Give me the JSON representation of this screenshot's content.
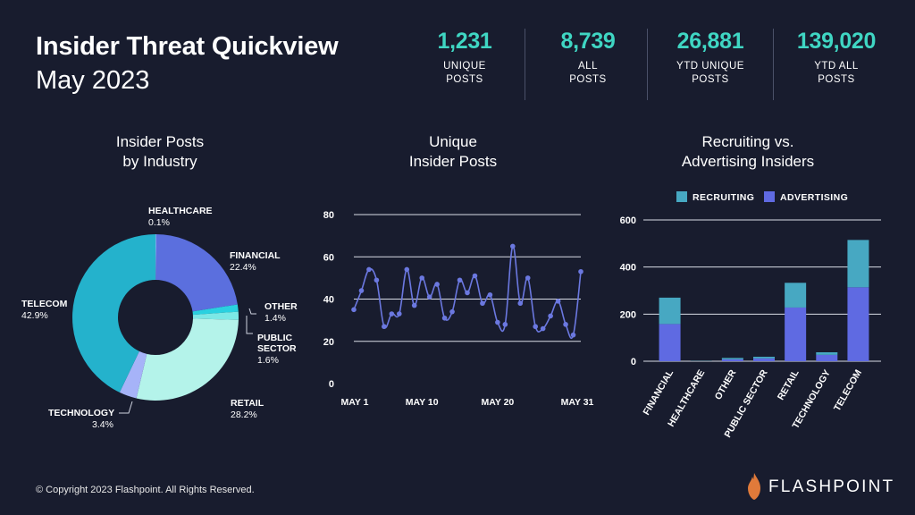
{
  "header": {
    "title": "Insider Threat Quickview",
    "subtitle": "May 2023"
  },
  "stats": [
    {
      "value": "1,231",
      "label": "UNIQUE\nPOSTS"
    },
    {
      "value": "8,739",
      "label": "ALL\nPOSTS"
    },
    {
      "value": "26,881",
      "label": "YTD UNIQUE\nPOSTS"
    },
    {
      "value": "139,020",
      "label": "YTD ALL\nPOSTS"
    }
  ],
  "chart_titles": {
    "pie": "Insider Posts\nby Industry",
    "line": "Unique\nInsider Posts",
    "bar": "Recruiting vs.\nAdvertising Insiders"
  },
  "colors": {
    "accent": "#3fd6c3",
    "background": "#181c2e",
    "financial": "#5b6fde",
    "healthcare": "#9fe6ff",
    "other": "#2ad1e0",
    "public_sector": "#7ce8e6",
    "retail": "#b4f3ea",
    "technology": "#a6b3f8",
    "telecom": "#24b2cc",
    "line": "#6b78e0",
    "recruiting": "#47a8c2",
    "advertising": "#5f6ae2"
  },
  "chart_data": [
    {
      "type": "pie",
      "title": "Insider Posts by Industry",
      "slices": [
        {
          "label": "HEALTHCARE",
          "value": 0.1,
          "display": "0.1%"
        },
        {
          "label": "FINANCIAL",
          "value": 22.4,
          "display": "22.4%"
        },
        {
          "label": "OTHER",
          "value": 1.4,
          "display": "1.4%"
        },
        {
          "label": "PUBLIC SECTOR",
          "value": 1.6,
          "display": "1.6%"
        },
        {
          "label": "RETAIL",
          "value": 28.2,
          "display": "28.2%"
        },
        {
          "label": "TECHNOLOGY",
          "value": 3.4,
          "display": "3.4%"
        },
        {
          "label": "TELECOM",
          "value": 42.9,
          "display": "42.9%"
        }
      ],
      "donut": true
    },
    {
      "type": "line",
      "title": "Unique Insider Posts",
      "x": [
        1,
        2,
        3,
        4,
        5,
        6,
        7,
        8,
        9,
        10,
        11,
        12,
        13,
        14,
        15,
        16,
        17,
        18,
        19,
        20,
        21,
        22,
        23,
        24,
        25,
        26,
        27,
        28,
        29,
        30,
        31
      ],
      "y": [
        35,
        44,
        54,
        49,
        27,
        33,
        33,
        54,
        37,
        50,
        41,
        47,
        31,
        34,
        49,
        43,
        51,
        38,
        42,
        29,
        28,
        65,
        38,
        50,
        27,
        26,
        32,
        39,
        28,
        23,
        53
      ],
      "xticks": [
        "MAY 1",
        "MAY 10",
        "MAY 20",
        "MAY 31"
      ],
      "ylim": [
        0,
        80
      ],
      "yticks": [
        0,
        20,
        40,
        60,
        80
      ],
      "grid": true
    },
    {
      "type": "bar",
      "stacked": true,
      "title": "Recruiting vs. Advertising Insiders",
      "categories": [
        "FINANCIAL",
        "HEALTHCARE",
        "OTHER",
        "PUBLIC SECTOR",
        "RETAIL",
        "TECHNOLOGY",
        "TELECOM"
      ],
      "series": [
        {
          "name": "ADVERTISING",
          "values": [
            158,
            0,
            8,
            12,
            228,
            27,
            314
          ]
        },
        {
          "name": "RECRUITING",
          "values": [
            112,
            1,
            6,
            7,
            105,
            11,
            201
          ]
        }
      ],
      "ylim": [
        0,
        600
      ],
      "yticks": [
        0,
        200,
        400,
        600
      ],
      "legend": "top",
      "grid": true
    }
  ],
  "footer": {
    "copyright": "© Copyright 2023 Flashpoint. All Rights Reserved.",
    "brand": "FLASHPOINT"
  }
}
